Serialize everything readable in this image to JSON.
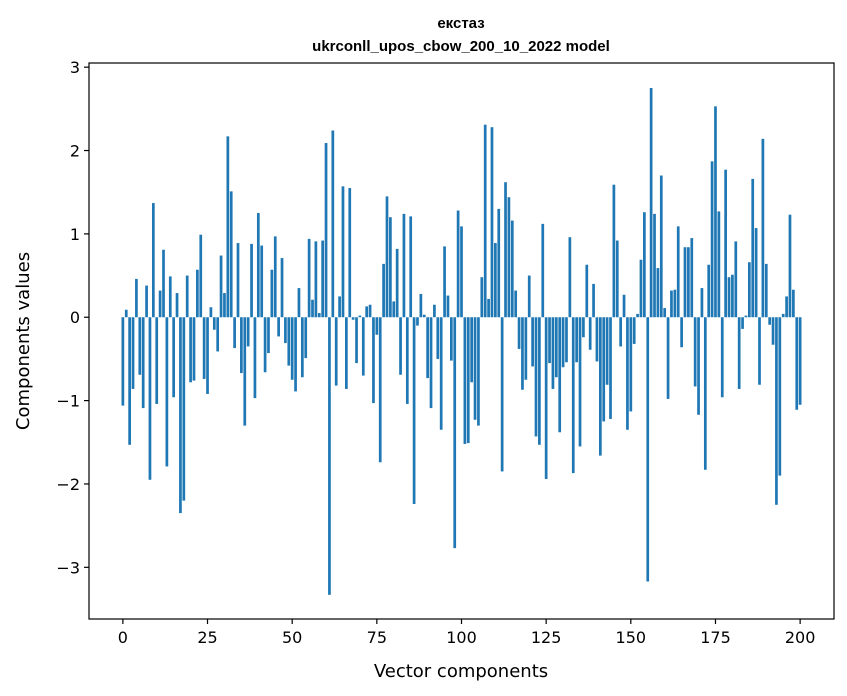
{
  "chart_data": {
    "type": "bar",
    "title": "екстаз",
    "subtitle": "ukrconll_upos_cbow_200_10_2022 model",
    "xlabel": "Vector components",
    "ylabel": "Components values",
    "xlim": [
      -10,
      210
    ],
    "ylim": [
      -3.62,
      3.05
    ],
    "xticks": [
      0,
      25,
      50,
      75,
      100,
      125,
      150,
      175,
      200
    ],
    "xtick_labels": [
      "0",
      "25",
      "50",
      "75",
      "100",
      "125",
      "150",
      "175",
      "200"
    ],
    "yticks": [
      -3,
      -2,
      -1,
      0,
      1,
      2,
      3
    ],
    "ytick_labels": [
      "−3",
      "−2",
      "−1",
      "0",
      "1",
      "2",
      "3"
    ],
    "grid": false,
    "legend": "none",
    "bar_color": "#1f77b4",
    "values": [
      -1.06,
      0.09,
      -1.53,
      -0.86,
      0.46,
      -0.69,
      -1.09,
      0.38,
      -1.95,
      1.37,
      -1.04,
      0.32,
      0.81,
      -1.79,
      0.49,
      -0.96,
      0.29,
      -2.35,
      -2.2,
      0.5,
      -0.78,
      -0.76,
      0.57,
      0.99,
      -0.74,
      -0.92,
      0.12,
      -0.15,
      -0.41,
      0.74,
      0.29,
      2.17,
      1.51,
      -0.37,
      0.89,
      -0.67,
      -1.3,
      -0.35,
      0.88,
      -0.97,
      1.25,
      0.86,
      -0.66,
      -0.43,
      0.57,
      0.97,
      -0.23,
      0.71,
      -0.31,
      -0.58,
      -0.75,
      -0.89,
      0.35,
      -0.72,
      -0.49,
      0.94,
      0.21,
      0.91,
      0.05,
      0.92,
      2.09,
      -3.33,
      2.24,
      -0.82,
      0.25,
      1.57,
      -0.86,
      1.55,
      -0.03,
      -0.55,
      0.02,
      -0.7,
      0.13,
      0.15,
      -1.03,
      -0.21,
      -1.74,
      0.64,
      1.45,
      1.2,
      0.19,
      0.82,
      -0.69,
      1.24,
      -1.04,
      1.21,
      -2.24,
      -0.1,
      0.28,
      0.03,
      -0.73,
      -1.09,
      0.15,
      -0.5,
      -1.35,
      0.85,
      0.26,
      -0.52,
      -2.77,
      1.28,
      1.09,
      -1.52,
      -1.51,
      -0.78,
      -1.23,
      -1.3,
      0.48,
      2.31,
      0.22,
      2.28,
      0.89,
      1.3,
      -1.85,
      1.62,
      1.44,
      1.16,
      0.32,
      -0.38,
      -0.87,
      -0.75,
      0.5,
      -0.59,
      -1.43,
      -1.53,
      1.12,
      -1.94,
      -0.55,
      -0.86,
      -0.72,
      -1.38,
      -0.6,
      -0.54,
      0.96,
      -1.87,
      -0.54,
      -1.55,
      -0.24,
      0.63,
      -0.39,
      0.4,
      -0.53,
      -1.66,
      -1.25,
      -0.81,
      -1.22,
      1.59,
      0.92,
      -0.35,
      0.27,
      -1.35,
      -1.13,
      -0.32,
      0.04,
      0.69,
      1.26,
      -3.17,
      2.75,
      1.24,
      0.59,
      1.7,
      0.11,
      -0.98,
      0.32,
      0.33,
      1.09,
      -0.36,
      0.84,
      0.84,
      0.95,
      -0.83,
      -1.17,
      0.35,
      -1.83,
      0.63,
      1.87,
      2.53,
      1.27,
      -0.96,
      1.77,
      0.48,
      0.51,
      0.91,
      -0.86,
      -0.14,
      0.02,
      0.66,
      1.66,
      1.07,
      -0.81,
      2.14,
      0.64,
      -0.09,
      -0.33,
      -2.25,
      -1.9,
      0.04,
      0.25,
      1.23,
      0.33,
      -1.11,
      -1.05
    ]
  }
}
